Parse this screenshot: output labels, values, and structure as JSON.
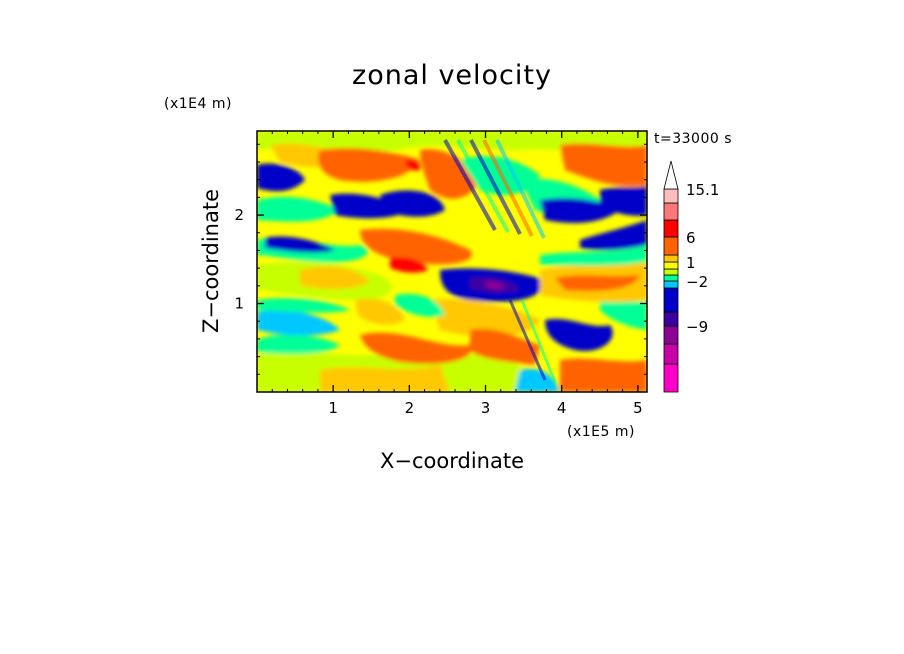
{
  "chart_data": {
    "type": "heatmap",
    "title": "zonal velocity",
    "xlabel": "X−coordinate",
    "ylabel": "Z−coordinate",
    "x_unit_label": "(x1E5 m)",
    "y_unit_label": "(x1E4 m)",
    "time_label": "t=33000 s",
    "xlim": [
      0,
      5.12
    ],
    "ylim": [
      0,
      2.95
    ],
    "x_ticks": [
      {
        "value": 1,
        "label": "1"
      },
      {
        "value": 2,
        "label": "2"
      },
      {
        "value": 3,
        "label": "3"
      },
      {
        "value": 4,
        "label": "4"
      },
      {
        "value": 5,
        "label": "5"
      }
    ],
    "y_ticks": [
      {
        "value": 1,
        "label": "1"
      },
      {
        "value": 2,
        "label": "2"
      }
    ],
    "grid": false,
    "colorbar": {
      "placement": "right",
      "extend_max_arrow": true,
      "levels": [
        {
          "color": "#ff00c8",
          "label": ""
        },
        {
          "color": "#c800aa",
          "label": ""
        },
        {
          "color": "#8c0096",
          "label": "−9"
        },
        {
          "color": "#3c00a0",
          "label": ""
        },
        {
          "color": "#0000c8",
          "label": ""
        },
        {
          "color": "#00c8ff",
          "label": "−2"
        },
        {
          "color": "#00ff96",
          "label": ""
        },
        {
          "color": "#c8ff00",
          "label": ""
        },
        {
          "color": "#ffff00",
          "label": "1"
        },
        {
          "color": "#ffc800",
          "label": ""
        },
        {
          "color": "#ff6400",
          "label": "6"
        },
        {
          "color": "#ff0000",
          "label": ""
        },
        {
          "color": "#ff7878",
          "label": ""
        },
        {
          "color": "#ffbebe",
          "label": "15.1"
        }
      ]
    },
    "field_regions": [
      {
        "category": "yellow",
        "color": "#ffff00",
        "desc": "background"
      },
      {
        "category": "orange",
        "color": "#ffc800"
      },
      {
        "category": "dark-orange",
        "color": "#ff6400"
      },
      {
        "category": "red",
        "color": "#ff0000"
      },
      {
        "category": "lime",
        "color": "#c8ff00"
      },
      {
        "category": "green",
        "color": "#00ff96"
      },
      {
        "category": "cyan",
        "color": "#00c8ff"
      },
      {
        "category": "blue",
        "color": "#0000c8"
      },
      {
        "category": "indigo",
        "color": "#3c00a0"
      },
      {
        "category": "purple",
        "color": "#8c0096"
      }
    ]
  }
}
